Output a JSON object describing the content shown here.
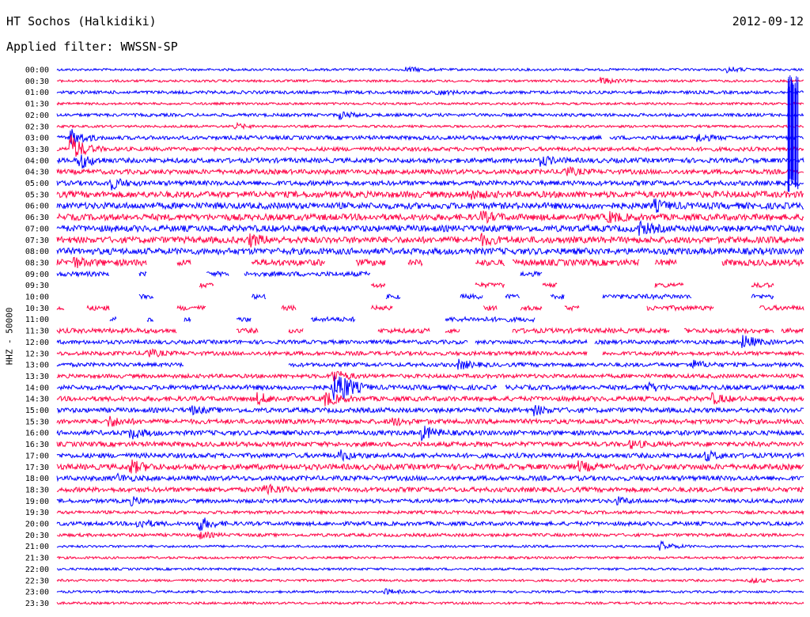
{
  "header": {
    "station": "HT Sochos (Halkidiki)",
    "date": "2012-09-12",
    "filter": "Applied filter: WWSSN-SP"
  },
  "chart_data": {
    "type": "line",
    "title": "HT Sochos (Halkidiki)",
    "subtitle": "Applied filter: WWSSN-SP",
    "date": "2012-09-12",
    "ylabel": "HHZ - 50000",
    "colors": {
      "even_rows": "#0000ff",
      "odd_rows": "#ff0044"
    },
    "rows": [
      {
        "label": "00:00",
        "amp": 1.5,
        "gaps": [],
        "bursts": [
          {
            "x": 0.47,
            "a": 3
          },
          {
            "x": 0.9,
            "a": 3
          }
        ]
      },
      {
        "label": "00:30",
        "amp": 1.5,
        "gaps": [],
        "bursts": [
          {
            "x": 0.73,
            "a": 4
          }
        ]
      },
      {
        "label": "01:00",
        "amp": 2.0,
        "gaps": [],
        "bursts": [
          {
            "x": 0.51,
            "a": 3
          }
        ]
      },
      {
        "label": "01:30",
        "amp": 1.5,
        "gaps": [],
        "bursts": []
      },
      {
        "label": "02:00",
        "amp": 2.0,
        "gaps": [],
        "bursts": [
          {
            "x": 0.38,
            "a": 4
          }
        ]
      },
      {
        "label": "02:30",
        "amp": 1.5,
        "gaps": [],
        "bursts": [
          {
            "x": 0.24,
            "a": 3
          }
        ]
      },
      {
        "label": "03:00",
        "amp": 2.5,
        "gaps": [
          [
            0.73,
            0.74
          ]
        ],
        "bursts": [
          {
            "x": 0.02,
            "a": 10
          },
          {
            "x": 0.86,
            "a": 4
          }
        ]
      },
      {
        "label": "03:30",
        "amp": 2.5,
        "gaps": [],
        "bursts": [
          {
            "x": 0.02,
            "a": 16
          }
        ]
      },
      {
        "label": "04:00",
        "amp": 3.0,
        "gaps": [],
        "bursts": [
          {
            "x": 0.03,
            "a": 10
          },
          {
            "x": 0.65,
            "a": 5
          }
        ]
      },
      {
        "label": "04:30",
        "amp": 3.0,
        "gaps": [],
        "bursts": [
          {
            "x": 0.68,
            "a": 5
          }
        ]
      },
      {
        "label": "05:00",
        "amp": 3.0,
        "gaps": [],
        "bursts": [
          {
            "x": 0.07,
            "a": 8
          }
        ]
      },
      {
        "label": "05:30",
        "amp": 4.0,
        "gaps": [],
        "bursts": [
          {
            "x": 0.55,
            "a": 4
          }
        ]
      },
      {
        "label": "06:00",
        "amp": 4.0,
        "gaps": [],
        "bursts": [
          {
            "x": 0.8,
            "a": 6
          }
        ]
      },
      {
        "label": "06:30",
        "amp": 4.0,
        "gaps": [],
        "bursts": [
          {
            "x": 0.57,
            "a": 5
          },
          {
            "x": 0.74,
            "a": 5
          }
        ]
      },
      {
        "label": "07:00",
        "amp": 4.0,
        "gaps": [],
        "bursts": [
          {
            "x": 0.78,
            "a": 7
          }
        ]
      },
      {
        "label": "07:30",
        "amp": 4.0,
        "gaps": [],
        "bursts": [
          {
            "x": 0.26,
            "a": 6
          },
          {
            "x": 0.57,
            "a": 5
          }
        ]
      },
      {
        "label": "08:00",
        "amp": 4.0,
        "gaps": [],
        "bursts": []
      },
      {
        "label": "08:30",
        "amp": 4.0,
        "gaps": [
          [
            0.12,
            0.16
          ],
          [
            0.18,
            0.26
          ],
          [
            0.36,
            0.4
          ],
          [
            0.44,
            0.47
          ],
          [
            0.49,
            0.56
          ],
          [
            0.6,
            0.61
          ],
          [
            0.78,
            0.8
          ],
          [
            0.83,
            0.89
          ]
        ],
        "bursts": [
          {
            "x": 0.02,
            "a": 6
          }
        ]
      },
      {
        "label": "09:00",
        "amp": 3.0,
        "gaps": [
          [
            0.07,
            0.11
          ],
          [
            0.12,
            0.2
          ],
          [
            0.23,
            0.25
          ],
          [
            0.42,
            0.62
          ],
          [
            0.65,
            1.0
          ]
        ],
        "bursts": []
      },
      {
        "label": "09:30",
        "amp": 3.0,
        "gaps": [
          [
            0.0,
            0.19
          ],
          [
            0.21,
            0.42
          ],
          [
            0.44,
            0.56
          ],
          [
            0.6,
            0.65
          ],
          [
            0.67,
            0.8
          ],
          [
            0.84,
            0.93
          ],
          [
            0.96,
            1.0
          ]
        ],
        "bursts": []
      },
      {
        "label": "10:00",
        "amp": 3.0,
        "gaps": [
          [
            0.0,
            0.11
          ],
          [
            0.13,
            0.26
          ],
          [
            0.28,
            0.44
          ],
          [
            0.46,
            0.54
          ],
          [
            0.57,
            0.6
          ],
          [
            0.62,
            0.66
          ],
          [
            0.68,
            0.73
          ],
          [
            0.85,
            0.93
          ],
          [
            0.96,
            1.0
          ]
        ],
        "bursts": []
      },
      {
        "label": "10:30",
        "amp": 3.0,
        "gaps": [
          [
            0.01,
            0.04
          ],
          [
            0.07,
            0.16
          ],
          [
            0.2,
            0.3
          ],
          [
            0.32,
            0.42
          ],
          [
            0.45,
            0.57
          ],
          [
            0.59,
            0.62
          ],
          [
            0.65,
            0.68
          ],
          [
            0.7,
            0.79
          ],
          [
            0.88,
            0.94
          ]
        ],
        "bursts": []
      },
      {
        "label": "11:00",
        "amp": 3.0,
        "gaps": [
          [
            0.0,
            0.07
          ],
          [
            0.08,
            0.12
          ],
          [
            0.13,
            0.17
          ],
          [
            0.18,
            0.24
          ],
          [
            0.26,
            0.34
          ],
          [
            0.4,
            0.52
          ],
          [
            0.64,
            1.0
          ]
        ],
        "bursts": []
      },
      {
        "label": "11:30",
        "amp": 3.0,
        "gaps": [
          [
            0.16,
            0.24
          ],
          [
            0.27,
            0.31
          ],
          [
            0.33,
            0.43
          ],
          [
            0.5,
            0.52
          ],
          [
            0.54,
            0.61
          ],
          [
            0.82,
            0.84
          ],
          [
            0.96,
            0.97
          ]
        ],
        "bursts": []
      },
      {
        "label": "12:00",
        "amp": 2.5,
        "gaps": [
          [
            0.55,
            0.56
          ],
          [
            0.71,
            0.72
          ]
        ],
        "bursts": [
          {
            "x": 0.92,
            "a": 8
          }
        ]
      },
      {
        "label": "12:30",
        "amp": 2.5,
        "gaps": [
          [
            0.71,
            0.73
          ]
        ],
        "bursts": [
          {
            "x": 0.12,
            "a": 5
          }
        ]
      },
      {
        "label": "13:00",
        "amp": 2.5,
        "gaps": [
          [
            0.17,
            0.31
          ]
        ],
        "bursts": [
          {
            "x": 0.54,
            "a": 5
          },
          {
            "x": 0.85,
            "a": 5
          }
        ]
      },
      {
        "label": "13:30",
        "amp": 2.5,
        "gaps": [],
        "bursts": [
          {
            "x": 0.37,
            "a": 8
          }
        ]
      },
      {
        "label": "14:00",
        "amp": 3.0,
        "gaps": [
          [
            0.59,
            0.6
          ]
        ],
        "bursts": [
          {
            "x": 0.37,
            "a": 14
          },
          {
            "x": 0.38,
            "a": 12
          },
          {
            "x": 0.79,
            "a": 5
          }
        ]
      },
      {
        "label": "14:30",
        "amp": 3.0,
        "gaps": [],
        "bursts": [
          {
            "x": 0.27,
            "a": 6
          },
          {
            "x": 0.36,
            "a": 8
          },
          {
            "x": 0.88,
            "a": 5
          }
        ]
      },
      {
        "label": "15:00",
        "amp": 3.0,
        "gaps": [],
        "bursts": [
          {
            "x": 0.18,
            "a": 4
          },
          {
            "x": 0.64,
            "a": 5
          }
        ]
      },
      {
        "label": "15:30",
        "amp": 3.0,
        "gaps": [],
        "bursts": [
          {
            "x": 0.07,
            "a": 6
          },
          {
            "x": 0.45,
            "a": 4
          }
        ]
      },
      {
        "label": "16:00",
        "amp": 3.0,
        "gaps": [],
        "bursts": [
          {
            "x": 0.1,
            "a": 6
          },
          {
            "x": 0.49,
            "a": 8
          }
        ]
      },
      {
        "label": "16:30",
        "amp": 3.0,
        "gaps": [],
        "bursts": [
          {
            "x": 0.77,
            "a": 4
          }
        ]
      },
      {
        "label": "17:00",
        "amp": 3.0,
        "gaps": [],
        "bursts": [
          {
            "x": 0.38,
            "a": 5
          },
          {
            "x": 0.87,
            "a": 5
          }
        ]
      },
      {
        "label": "17:30",
        "amp": 3.5,
        "gaps": [],
        "bursts": [
          {
            "x": 0.1,
            "a": 7
          },
          {
            "x": 0.7,
            "a": 5
          }
        ]
      },
      {
        "label": "18:00",
        "amp": 3.0,
        "gaps": [],
        "bursts": [
          {
            "x": 0.08,
            "a": 4
          }
        ]
      },
      {
        "label": "18:30",
        "amp": 3.0,
        "gaps": [],
        "bursts": [
          {
            "x": 0.28,
            "a": 7
          }
        ]
      },
      {
        "label": "19:00",
        "amp": 2.5,
        "gaps": [],
        "bursts": [
          {
            "x": 0.1,
            "a": 4
          },
          {
            "x": 0.75,
            "a": 4
          }
        ]
      },
      {
        "label": "19:30",
        "amp": 2.0,
        "gaps": [],
        "bursts": []
      },
      {
        "label": "20:00",
        "amp": 2.5,
        "gaps": [],
        "bursts": [
          {
            "x": 0.11,
            "a": 5
          },
          {
            "x": 0.19,
            "a": 9
          }
        ]
      },
      {
        "label": "20:30",
        "amp": 2.0,
        "gaps": [],
        "bursts": [
          {
            "x": 0.19,
            "a": 4
          }
        ]
      },
      {
        "label": "21:00",
        "amp": 1.5,
        "gaps": [],
        "bursts": [
          {
            "x": 0.81,
            "a": 5
          }
        ]
      },
      {
        "label": "21:30",
        "amp": 1.5,
        "gaps": [],
        "bursts": []
      },
      {
        "label": "22:00",
        "amp": 1.5,
        "gaps": [],
        "bursts": []
      },
      {
        "label": "22:30",
        "amp": 1.5,
        "gaps": [],
        "bursts": [
          {
            "x": 0.93,
            "a": 3
          }
        ]
      },
      {
        "label": "23:00",
        "amp": 1.5,
        "gaps": [],
        "bursts": [
          {
            "x": 0.44,
            "a": 3
          }
        ]
      },
      {
        "label": "23:30",
        "amp": 1.5,
        "gaps": [],
        "bursts": []
      }
    ],
    "events": [
      {
        "label": "large-event-right",
        "x": 0.985,
        "row_from": 0.5,
        "row_to": 11
      }
    ]
  }
}
